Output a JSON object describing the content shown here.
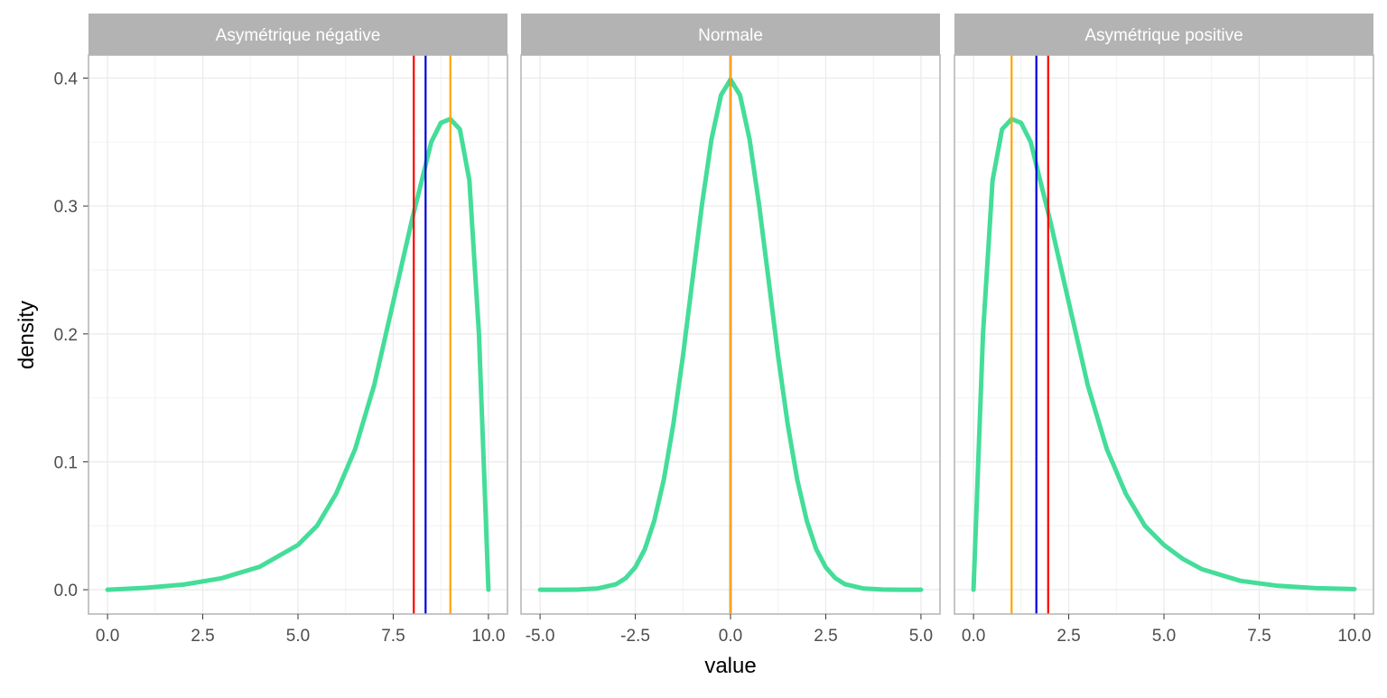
{
  "chart_data": {
    "type": "line",
    "ylabel": "density",
    "xlabel": "value",
    "ylim": [
      -0.019,
      0.418
    ],
    "yticks": [
      0.0,
      0.1,
      0.2,
      0.3,
      0.4
    ],
    "ytick_labels": [
      "0.0",
      "0.1",
      "0.2",
      "0.3",
      "0.4"
    ],
    "grid": true,
    "colors": {
      "curve": "#44dd99",
      "mean": "#ff0000",
      "median": "#0000dd",
      "mode": "#ffa500",
      "strip": "#b3b3b3",
      "grid": "#ebebeb",
      "border": "#b3b3b3"
    },
    "panels": [
      {
        "title": "Asymétrique négative",
        "xlim": [
          -0.5,
          10.5
        ],
        "xticks": [
          0,
          2.5,
          5,
          7.5,
          10
        ],
        "xtick_labels": [
          "0.0",
          "2.5",
          "5.0",
          "7.5",
          "10.0"
        ],
        "x": [
          0,
          1,
          2,
          3,
          4,
          5,
          5.5,
          6,
          6.5,
          7,
          7.5,
          8,
          8.25,
          8.5,
          8.75,
          9,
          9.25,
          9.5,
          9.75,
          10
        ],
        "y": [
          0.0,
          0.0015,
          0.004,
          0.009,
          0.018,
          0.035,
          0.05,
          0.075,
          0.11,
          0.16,
          0.225,
          0.29,
          0.32,
          0.35,
          0.365,
          0.368,
          0.36,
          0.32,
          0.2,
          0.0
        ],
        "vlines": {
          "mean": 8.04,
          "median": 8.35,
          "mode": 9.0
        }
      },
      {
        "title": "Normale",
        "xlim": [
          -5.5,
          5.5
        ],
        "xticks": [
          -5,
          -2.5,
          0,
          2.5,
          5
        ],
        "xtick_labels": [
          "-5.0",
          "-2.5",
          "0.0",
          "2.5",
          "5.0"
        ],
        "x": [
          -5,
          -4.5,
          -4,
          -3.5,
          -3,
          -2.75,
          -2.5,
          -2.25,
          -2,
          -1.75,
          -1.5,
          -1.25,
          -1,
          -0.75,
          -0.5,
          -0.25,
          0,
          0.25,
          0.5,
          0.75,
          1,
          1.25,
          1.5,
          1.75,
          2,
          2.25,
          2.5,
          2.75,
          3,
          3.5,
          4,
          4.5,
          5
        ],
        "y": [
          0.0,
          0.0,
          0.0001,
          0.0009,
          0.0044,
          0.0091,
          0.0175,
          0.0317,
          0.054,
          0.0863,
          0.1295,
          0.1826,
          0.242,
          0.3011,
          0.3521,
          0.3867,
          0.3989,
          0.3867,
          0.3521,
          0.3011,
          0.242,
          0.1826,
          0.1295,
          0.0863,
          0.054,
          0.0317,
          0.0175,
          0.0091,
          0.0044,
          0.0009,
          0.0001,
          0.0,
          0.0
        ],
        "vlines": {
          "mean": 0.0,
          "median": 0.0,
          "mode": 0.0
        }
      },
      {
        "title": "Asymétrique positive",
        "xlim": [
          -0.5,
          10.5
        ],
        "xticks": [
          0,
          2.5,
          5,
          7.5,
          10
        ],
        "xtick_labels": [
          "0.0",
          "2.5",
          "5.0",
          "7.5",
          "10.0"
        ],
        "x": [
          0,
          0.25,
          0.5,
          0.75,
          1,
          1.25,
          1.5,
          1.75,
          2,
          2.5,
          3,
          3.5,
          4,
          4.5,
          5,
          5.5,
          6,
          7,
          8,
          9,
          10
        ],
        "y": [
          0.0,
          0.2,
          0.32,
          0.36,
          0.368,
          0.365,
          0.35,
          0.32,
          0.29,
          0.225,
          0.16,
          0.11,
          0.075,
          0.05,
          0.035,
          0.024,
          0.016,
          0.007,
          0.003,
          0.0012,
          0.0005
        ],
        "vlines": {
          "mean": 1.96,
          "median": 1.65,
          "mode": 1.0
        }
      }
    ]
  }
}
